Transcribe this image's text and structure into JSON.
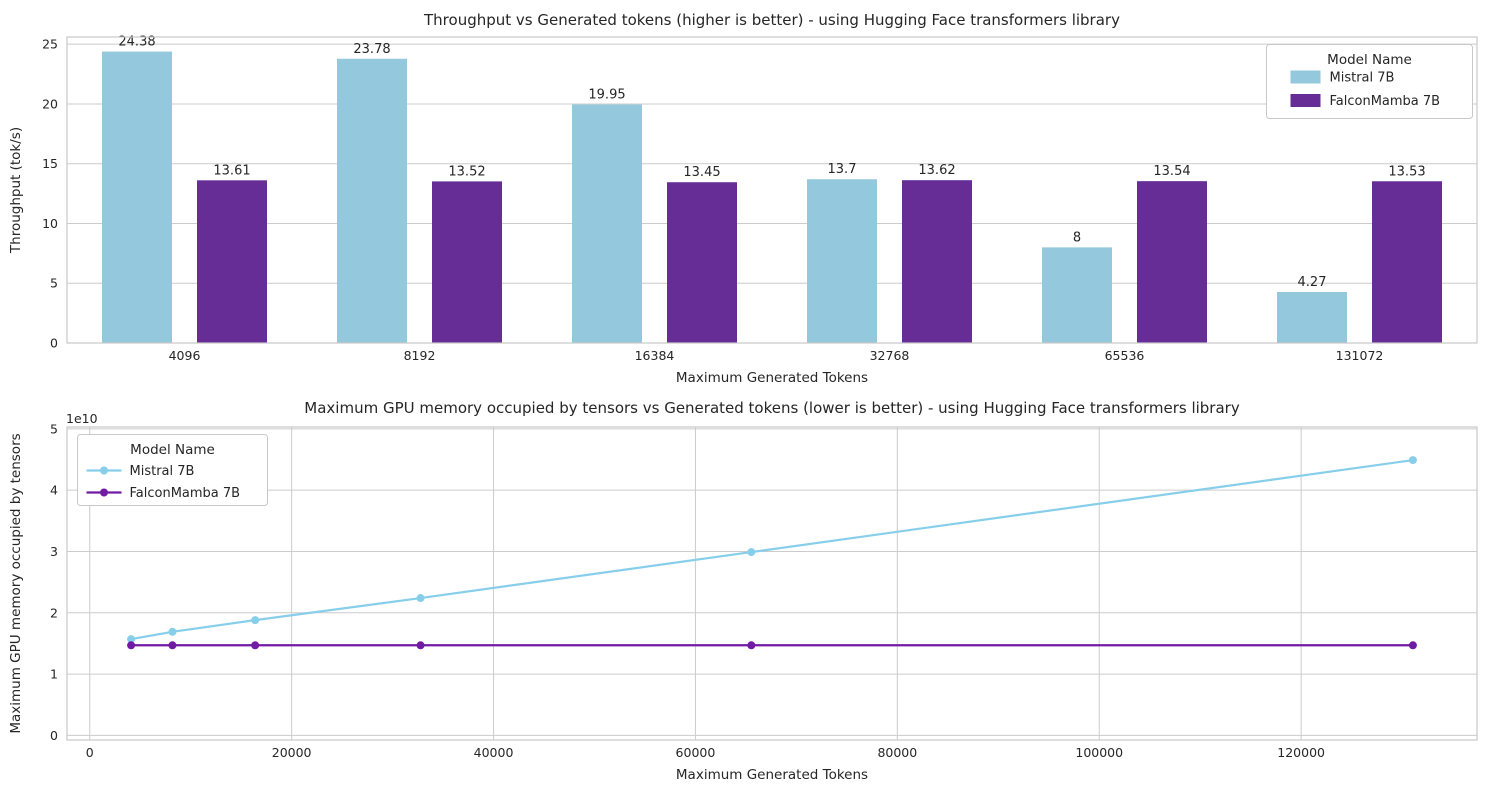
{
  "colors": {
    "background": "#ffffff",
    "grid": "#cccccc",
    "spine": "#c8c8c8",
    "text": "#262626",
    "mistral_bar": "#94c8dd",
    "falconmamba_bar": "#662d96",
    "mistral_line": "#87ceeb",
    "falconmamba_line": "#711ba4"
  },
  "legend_title": "Model Name",
  "models": [
    "Mistral 7B",
    "FalconMamba 7B"
  ],
  "chart_data": [
    {
      "type": "bar",
      "title": "Throughput vs Generated tokens (higher is better) - using Hugging Face transformers library",
      "xlabel": "Maximum Generated Tokens",
      "ylabel": "Throughput (tok/s)",
      "categories": [
        "4096",
        "8192",
        "16384",
        "32768",
        "65536",
        "131072"
      ],
      "series": [
        {
          "name": "Mistral 7B",
          "color_key": "mistral_bar",
          "values": [
            24.38,
            23.78,
            19.95,
            13.7,
            8,
            4.27
          ],
          "bar_labels": [
            "24.38",
            "23.78",
            "19.95",
            "13.7",
            "8",
            "4.27"
          ]
        },
        {
          "name": "FalconMamba 7B",
          "color_key": "falconmamba_bar",
          "values": [
            13.61,
            13.52,
            13.45,
            13.62,
            13.54,
            13.53
          ],
          "bar_labels": [
            "13.61",
            "13.52",
            "13.45",
            "13.62",
            "13.54",
            "13.53"
          ]
        }
      ],
      "yticks": [
        0,
        5,
        10,
        15,
        20,
        25
      ],
      "ytick_labels": [
        "0",
        "5",
        "10",
        "15",
        "20",
        "25"
      ],
      "ylim": [
        0,
        25.6
      ],
      "grid": "horizontal",
      "legend": {
        "title": "Model Name",
        "position": "upper-right"
      }
    },
    {
      "type": "line",
      "title": "Maximum GPU memory occupied by tensors vs Generated tokens (lower is better) - using Hugging Face transformers library",
      "xlabel": "Maximum Generated Tokens",
      "ylabel": "Maximum GPU memory occupied by tensors",
      "y_offset_text": "1e10",
      "x": [
        4096,
        8192,
        16384,
        32768,
        65536,
        131072
      ],
      "series": [
        {
          "name": "Mistral 7B",
          "color_key": "mistral_line",
          "values": [
            15700000000.0,
            16900000000.0,
            18800000000.0,
            22400000000.0,
            29900000000.0,
            44900000000.0
          ]
        },
        {
          "name": "FalconMamba 7B",
          "color_key": "falconmamba_line",
          "values": [
            14700000000.0,
            14700000000.0,
            14700000000.0,
            14700000000.0,
            14700000000.0,
            14700000000.0
          ]
        }
      ],
      "xticks": [
        0,
        20000,
        40000,
        60000,
        80000,
        100000,
        120000
      ],
      "xtick_labels": [
        "0",
        "20000",
        "40000",
        "60000",
        "80000",
        "100000",
        "120000"
      ],
      "yticks": [
        0,
        10000000000.0,
        20000000000.0,
        30000000000.0,
        40000000000.0,
        50000000000.0
      ],
      "ytick_labels": [
        "0",
        "1",
        "2",
        "3",
        "4",
        "5"
      ],
      "xlim": [
        -2253,
        137421
      ],
      "ylim": [
        -750000000.0,
        50300000000.0
      ],
      "grid": "both",
      "legend": {
        "title": "Model Name",
        "position": "upper-left"
      }
    }
  ]
}
